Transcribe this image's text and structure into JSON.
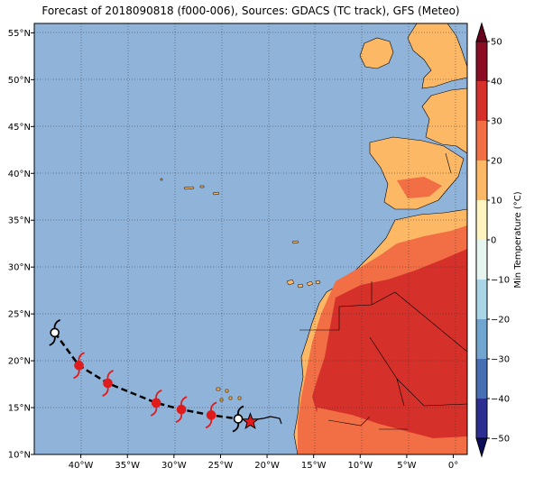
{
  "title": "Forecast of 2018090818 (f000-006), Sources: GDACS (TC track), GFS (Meteo)",
  "map": {
    "lon_range": [
      -45,
      1.5
    ],
    "lat_range": [
      10,
      56
    ],
    "lat_ticks": [
      {
        "value": 10,
        "label": "10°N"
      },
      {
        "value": 15,
        "label": "15°N"
      },
      {
        "value": 20,
        "label": "20°N"
      },
      {
        "value": 25,
        "label": "25°N"
      },
      {
        "value": 30,
        "label": "30°N"
      },
      {
        "value": 35,
        "label": "35°N"
      },
      {
        "value": 40,
        "label": "40°N"
      },
      {
        "value": 45,
        "label": "45°N"
      },
      {
        "value": 50,
        "label": "50°N"
      },
      {
        "value": 55,
        "label": "55°N"
      }
    ],
    "lon_ticks": [
      {
        "value": -40,
        "label": "40°W"
      },
      {
        "value": -35,
        "label": "35°W"
      },
      {
        "value": -30,
        "label": "30°W"
      },
      {
        "value": -25,
        "label": "25°W"
      },
      {
        "value": -20,
        "label": "20°W"
      },
      {
        "value": -15,
        "label": "15°W"
      },
      {
        "value": -10,
        "label": "10°W"
      },
      {
        "value": -5,
        "label": "5°W"
      },
      {
        "value": 0,
        "label": "0°"
      }
    ],
    "gridlines": "dotted",
    "ocean_color": "#8fb3d9",
    "track": {
      "points": [
        {
          "lon": -42.8,
          "lat": 23.0,
          "color": "black"
        },
        {
          "lon": -40.2,
          "lat": 19.5,
          "color": "red"
        },
        {
          "lon": -37.1,
          "lat": 17.6,
          "color": "red"
        },
        {
          "lon": -31.9,
          "lat": 15.5,
          "color": "red"
        },
        {
          "lon": -29.2,
          "lat": 14.8,
          "color": "red"
        },
        {
          "lon": -26.0,
          "lat": 14.2,
          "color": "red"
        },
        {
          "lon": -23.1,
          "lat": 13.8,
          "color": "black"
        }
      ],
      "current_position": {
        "lon": -21.8,
        "lat": 13.5
      }
    }
  },
  "colorbar": {
    "label": "Min Temperature (°C)",
    "range": [
      -50,
      50
    ],
    "ticks": [
      {
        "value": 50,
        "label": "50"
      },
      {
        "value": 40,
        "label": "40"
      },
      {
        "value": 30,
        "label": "30"
      },
      {
        "value": 20,
        "label": "20"
      },
      {
        "value": 10,
        "label": "10"
      },
      {
        "value": 0,
        "label": "0"
      },
      {
        "value": -10,
        "label": "−10"
      },
      {
        "value": -20,
        "label": "−20"
      },
      {
        "value": -30,
        "label": "−30"
      },
      {
        "value": -40,
        "label": "−40"
      },
      {
        "value": -50,
        "label": "−50"
      }
    ],
    "bands": [
      {
        "from": 40,
        "to": 50,
        "color": "#8b0d26"
      },
      {
        "from": 30,
        "to": 40,
        "color": "#d5302a"
      },
      {
        "from": 20,
        "to": 30,
        "color": "#f26e44"
      },
      {
        "from": 10,
        "to": 20,
        "color": "#fdb866"
      },
      {
        "from": 0,
        "to": 10,
        "color": "#fff4c0"
      },
      {
        "from": -10,
        "to": 0,
        "color": "#e6f5f0"
      },
      {
        "from": -20,
        "to": -10,
        "color": "#a9d5e6"
      },
      {
        "from": -30,
        "to": -20,
        "color": "#6fa5cf"
      },
      {
        "from": -40,
        "to": -30,
        "color": "#4770b4"
      },
      {
        "from": -50,
        "to": -40,
        "color": "#2c2f90"
      }
    ]
  }
}
